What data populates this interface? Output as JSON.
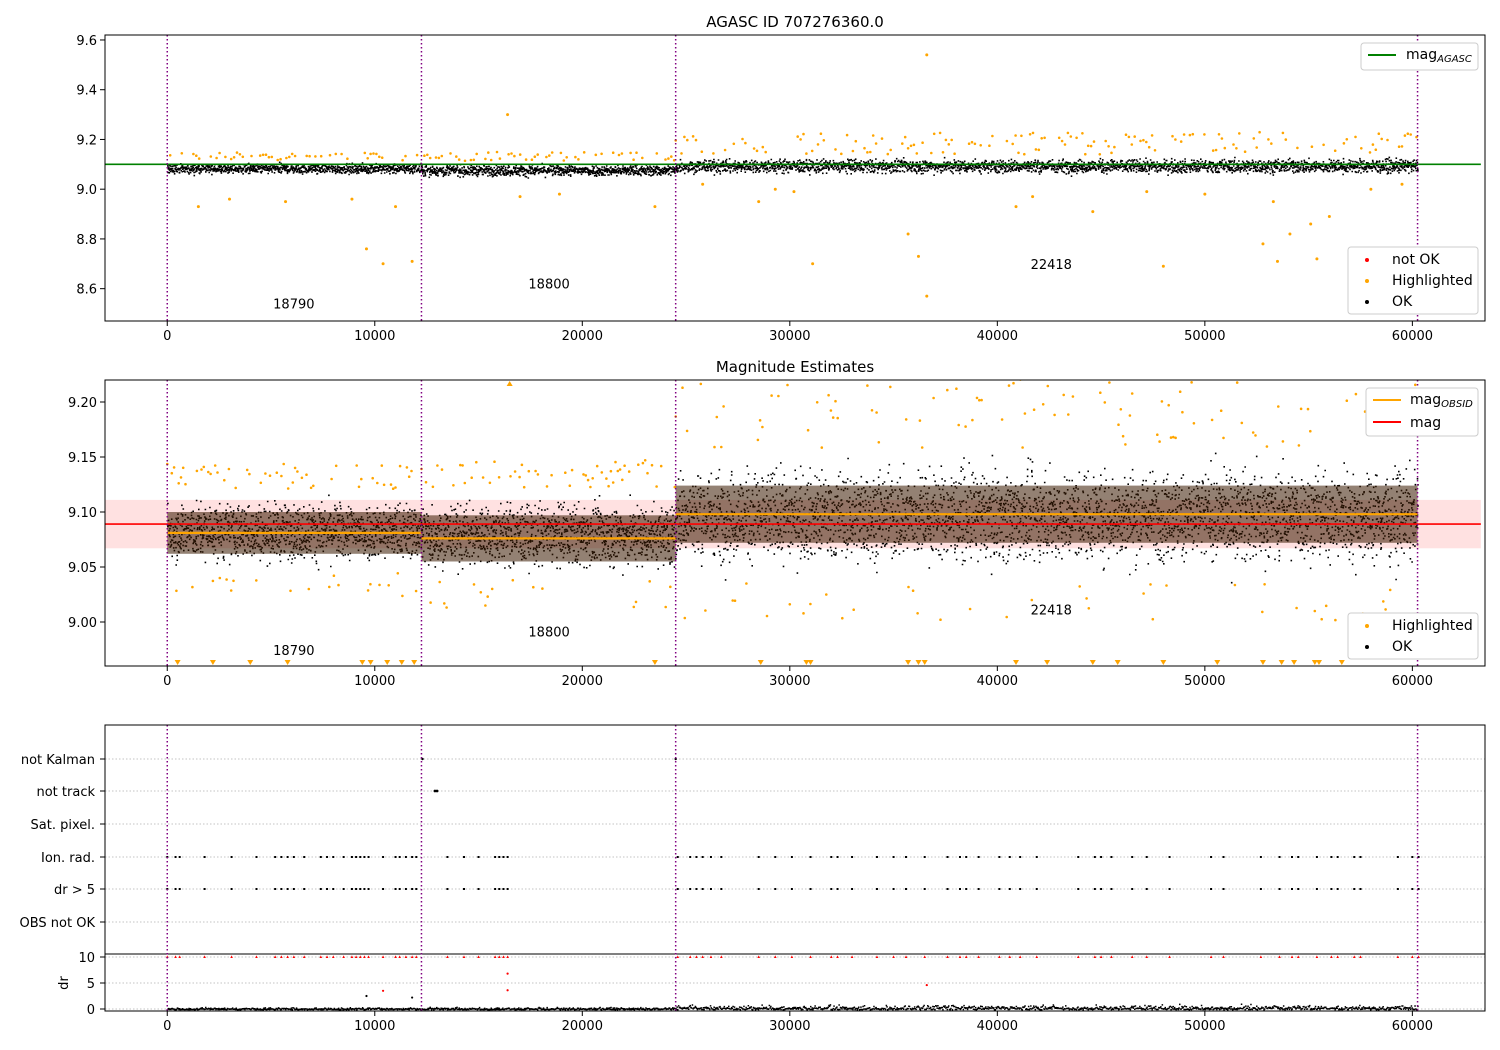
{
  "colors": {
    "ok": "#000000",
    "highlighted": "#ffa500",
    "not_ok": "#ff0000",
    "agasc_line": "#008000",
    "mag_line": "#ff0000",
    "obsid_line": "#ffa500",
    "band": "#ffc8c8",
    "segment_fill": "#3a1a00",
    "vline": "#800080",
    "grid": "#b0b0b0"
  },
  "chart_data": [
    {
      "id": "top",
      "type": "scatter",
      "title": "AGASC ID 707276360.0",
      "xlabel": "",
      "ylabel": "",
      "xlim": [
        -3000,
        63500
      ],
      "ylim": [
        8.47,
        9.62
      ],
      "xticks": [
        0,
        10000,
        20000,
        30000,
        40000,
        50000,
        60000
      ],
      "xtick_labels": [
        "0",
        "10000",
        "20000",
        "30000",
        "40000",
        "50000",
        "60000"
      ],
      "yticks": [
        8.6,
        8.8,
        9.0,
        9.2,
        9.4,
        9.6
      ],
      "ytick_labels": [
        "8.6",
        "8.8",
        "9.0",
        "9.2",
        "9.4",
        "9.6"
      ],
      "obsid_boundaries": [
        0,
        12250,
        24500,
        60250
      ],
      "segment_labels": [
        {
          "text": "18790",
          "x": 6100,
          "y": 8.52
        },
        {
          "text": "18800",
          "x": 18400,
          "y": 8.6
        },
        {
          "text": "22418",
          "x": 42600,
          "y": 8.68
        }
      ],
      "mag_agasc": 9.1,
      "agasc_line_x": [
        -3000,
        63300
      ],
      "ok_bands": [
        {
          "x0": 0,
          "x1": 12250,
          "center": 9.085,
          "halfwidth": 0.035
        },
        {
          "x0": 12250,
          "x1": 24500,
          "center": 9.078,
          "halfwidth": 0.04
        },
        {
          "x0": 24500,
          "x1": 60250,
          "center": 9.095,
          "halfwidth": 0.05
        }
      ],
      "highlighted_points": [
        [
          16400,
          9.3
        ],
        [
          36600,
          9.54
        ],
        [
          9600,
          8.76
        ],
        [
          10400,
          8.7
        ],
        [
          11800,
          8.71
        ],
        [
          31100,
          8.7
        ],
        [
          35700,
          8.82
        ],
        [
          36200,
          8.73
        ],
        [
          36600,
          8.57
        ],
        [
          48000,
          8.69
        ],
        [
          52800,
          8.78
        ],
        [
          53500,
          8.71
        ],
        [
          54100,
          8.82
        ],
        [
          55100,
          8.86
        ],
        [
          55400,
          8.72
        ],
        [
          56000,
          8.89
        ],
        [
          30200,
          8.99
        ],
        [
          28500,
          8.95
        ],
        [
          23500,
          8.93
        ],
        [
          3000,
          8.96
        ],
        [
          1500,
          8.93
        ],
        [
          5700,
          8.95
        ],
        [
          8900,
          8.96
        ],
        [
          11000,
          8.93
        ],
        [
          17000,
          8.97
        ],
        [
          18900,
          8.98
        ],
        [
          41700,
          8.97
        ],
        [
          44600,
          8.91
        ],
        [
          47200,
          8.99
        ],
        [
          50000,
          8.98
        ],
        [
          53300,
          8.95
        ],
        [
          58000,
          9.0
        ],
        [
          59500,
          9.02
        ],
        [
          40900,
          8.93
        ],
        [
          25800,
          9.02
        ],
        [
          29300,
          9.0
        ]
      ],
      "legend_upper": [
        {
          "label": "mag",
          "sub": "AGASC",
          "color": "#008000"
        }
      ],
      "legend_lower": [
        {
          "label": "not OK",
          "color": "#ff0000"
        },
        {
          "label": "Highlighted",
          "color": "#ffa500"
        },
        {
          "label": "OK",
          "color": "#000000"
        }
      ]
    },
    {
      "id": "middle",
      "type": "scatter",
      "title": "Magnitude Estimates",
      "xlabel": "",
      "ylabel": "",
      "xlim": [
        -3000,
        63500
      ],
      "ylim": [
        8.96,
        9.22
      ],
      "xticks": [
        0,
        10000,
        20000,
        30000,
        40000,
        50000,
        60000
      ],
      "xtick_labels": [
        "0",
        "10000",
        "20000",
        "30000",
        "40000",
        "50000",
        "60000"
      ],
      "yticks": [
        9.0,
        9.05,
        9.1,
        9.15,
        9.2
      ],
      "ytick_labels": [
        "9.00",
        "9.05",
        "9.10",
        "9.15",
        "9.20"
      ],
      "obsid_boundaries": [
        0,
        12250,
        24500,
        60250
      ],
      "segment_labels": [
        {
          "text": "18790",
          "x": 6100,
          "y": 8.97
        },
        {
          "text": "18800",
          "x": 18400,
          "y": 8.987
        },
        {
          "text": "22418",
          "x": 42600,
          "y": 9.007
        }
      ],
      "mag": 9.089,
      "mag_band": [
        9.067,
        9.111
      ],
      "mag_line_x": [
        -3000,
        63300
      ],
      "obsid_segments": [
        {
          "x0": 0,
          "x1": 12250,
          "mag": 9.081,
          "fill_lo": 9.062,
          "fill_hi": 9.1
        },
        {
          "x0": 12250,
          "x1": 24500,
          "mag": 9.076,
          "fill_lo": 9.055,
          "fill_hi": 9.097
        },
        {
          "x0": 24500,
          "x1": 60250,
          "mag": 9.098,
          "fill_lo": 9.072,
          "fill_hi": 9.124
        }
      ],
      "ok_bands": [
        {
          "x0": 0,
          "x1": 12250,
          "center": 9.083,
          "halfwidth": 0.038
        },
        {
          "x0": 12250,
          "x1": 24500,
          "center": 9.08,
          "halfwidth": 0.042
        },
        {
          "x0": 24500,
          "x1": 60250,
          "center": 9.097,
          "halfwidth": 0.06
        }
      ],
      "below_axis_markers_x": [
        500,
        2200,
        4000,
        5800,
        9400,
        9800,
        10600,
        11300,
        11900,
        23500,
        28600,
        30800,
        31000,
        35700,
        36200,
        36500,
        40900,
        42400,
        44600,
        45800,
        48000,
        50600,
        52800,
        53700,
        54300,
        55300,
        55500,
        56600
      ],
      "above_axis_markers_x": [
        16500
      ],
      "legend_upper": [
        {
          "label": "mag",
          "sub": "OBSID",
          "color": "#ffa500"
        },
        {
          "label": "mag",
          "sub": "",
          "color": "#ff0000"
        }
      ],
      "legend_lower": [
        {
          "label": "Highlighted",
          "color": "#ffa500"
        },
        {
          "label": "OK",
          "color": "#000000"
        }
      ]
    },
    {
      "id": "flags",
      "type": "scatter",
      "xlim": [
        -3000,
        63500
      ],
      "categories": [
        "not Kalman",
        "not track",
        "Sat. pixel.",
        "Ion. rad.",
        "dr > 5",
        "OBS not OK"
      ],
      "not_kalman_x": [
        12300,
        24500
      ],
      "not_track_x": [
        12900,
        13000
      ],
      "ion_rad_x": [
        0,
        400,
        600,
        1800,
        3100,
        4300,
        5200,
        5500,
        5800,
        6100,
        6600,
        7400,
        7700,
        8000,
        8500,
        8900,
        9100,
        9300,
        9500,
        9700,
        10400,
        11000,
        11200,
        11500,
        11800,
        12000,
        13500,
        14300,
        15000,
        15800,
        16000,
        16200,
        16400,
        24600,
        25200,
        25500,
        25800,
        26200,
        26700,
        28500,
        29300,
        30100,
        31000,
        32000,
        32300,
        33000,
        34200,
        35000,
        35600,
        36500,
        37600,
        38200,
        38500,
        39100,
        40100,
        40600,
        41100,
        41900,
        43900,
        44700,
        45000,
        45500,
        46500,
        47200,
        48300,
        50300,
        50900,
        52700,
        53600,
        54200,
        54500,
        55400,
        56100,
        56400,
        57200,
        57500,
        59300,
        60000,
        60300
      ],
      "dr_ticks": [
        0,
        5,
        10
      ],
      "dr_ylabel": "dr",
      "dr_ylim": [
        -0.5,
        10.5
      ],
      "dr_high_points": [
        [
          9600,
          2.5
        ],
        [
          10400,
          3.5
        ],
        [
          11800,
          2.2
        ],
        [
          16400,
          3.6
        ],
        [
          16400,
          6.8
        ],
        [
          36600,
          4.6
        ]
      ]
    }
  ]
}
